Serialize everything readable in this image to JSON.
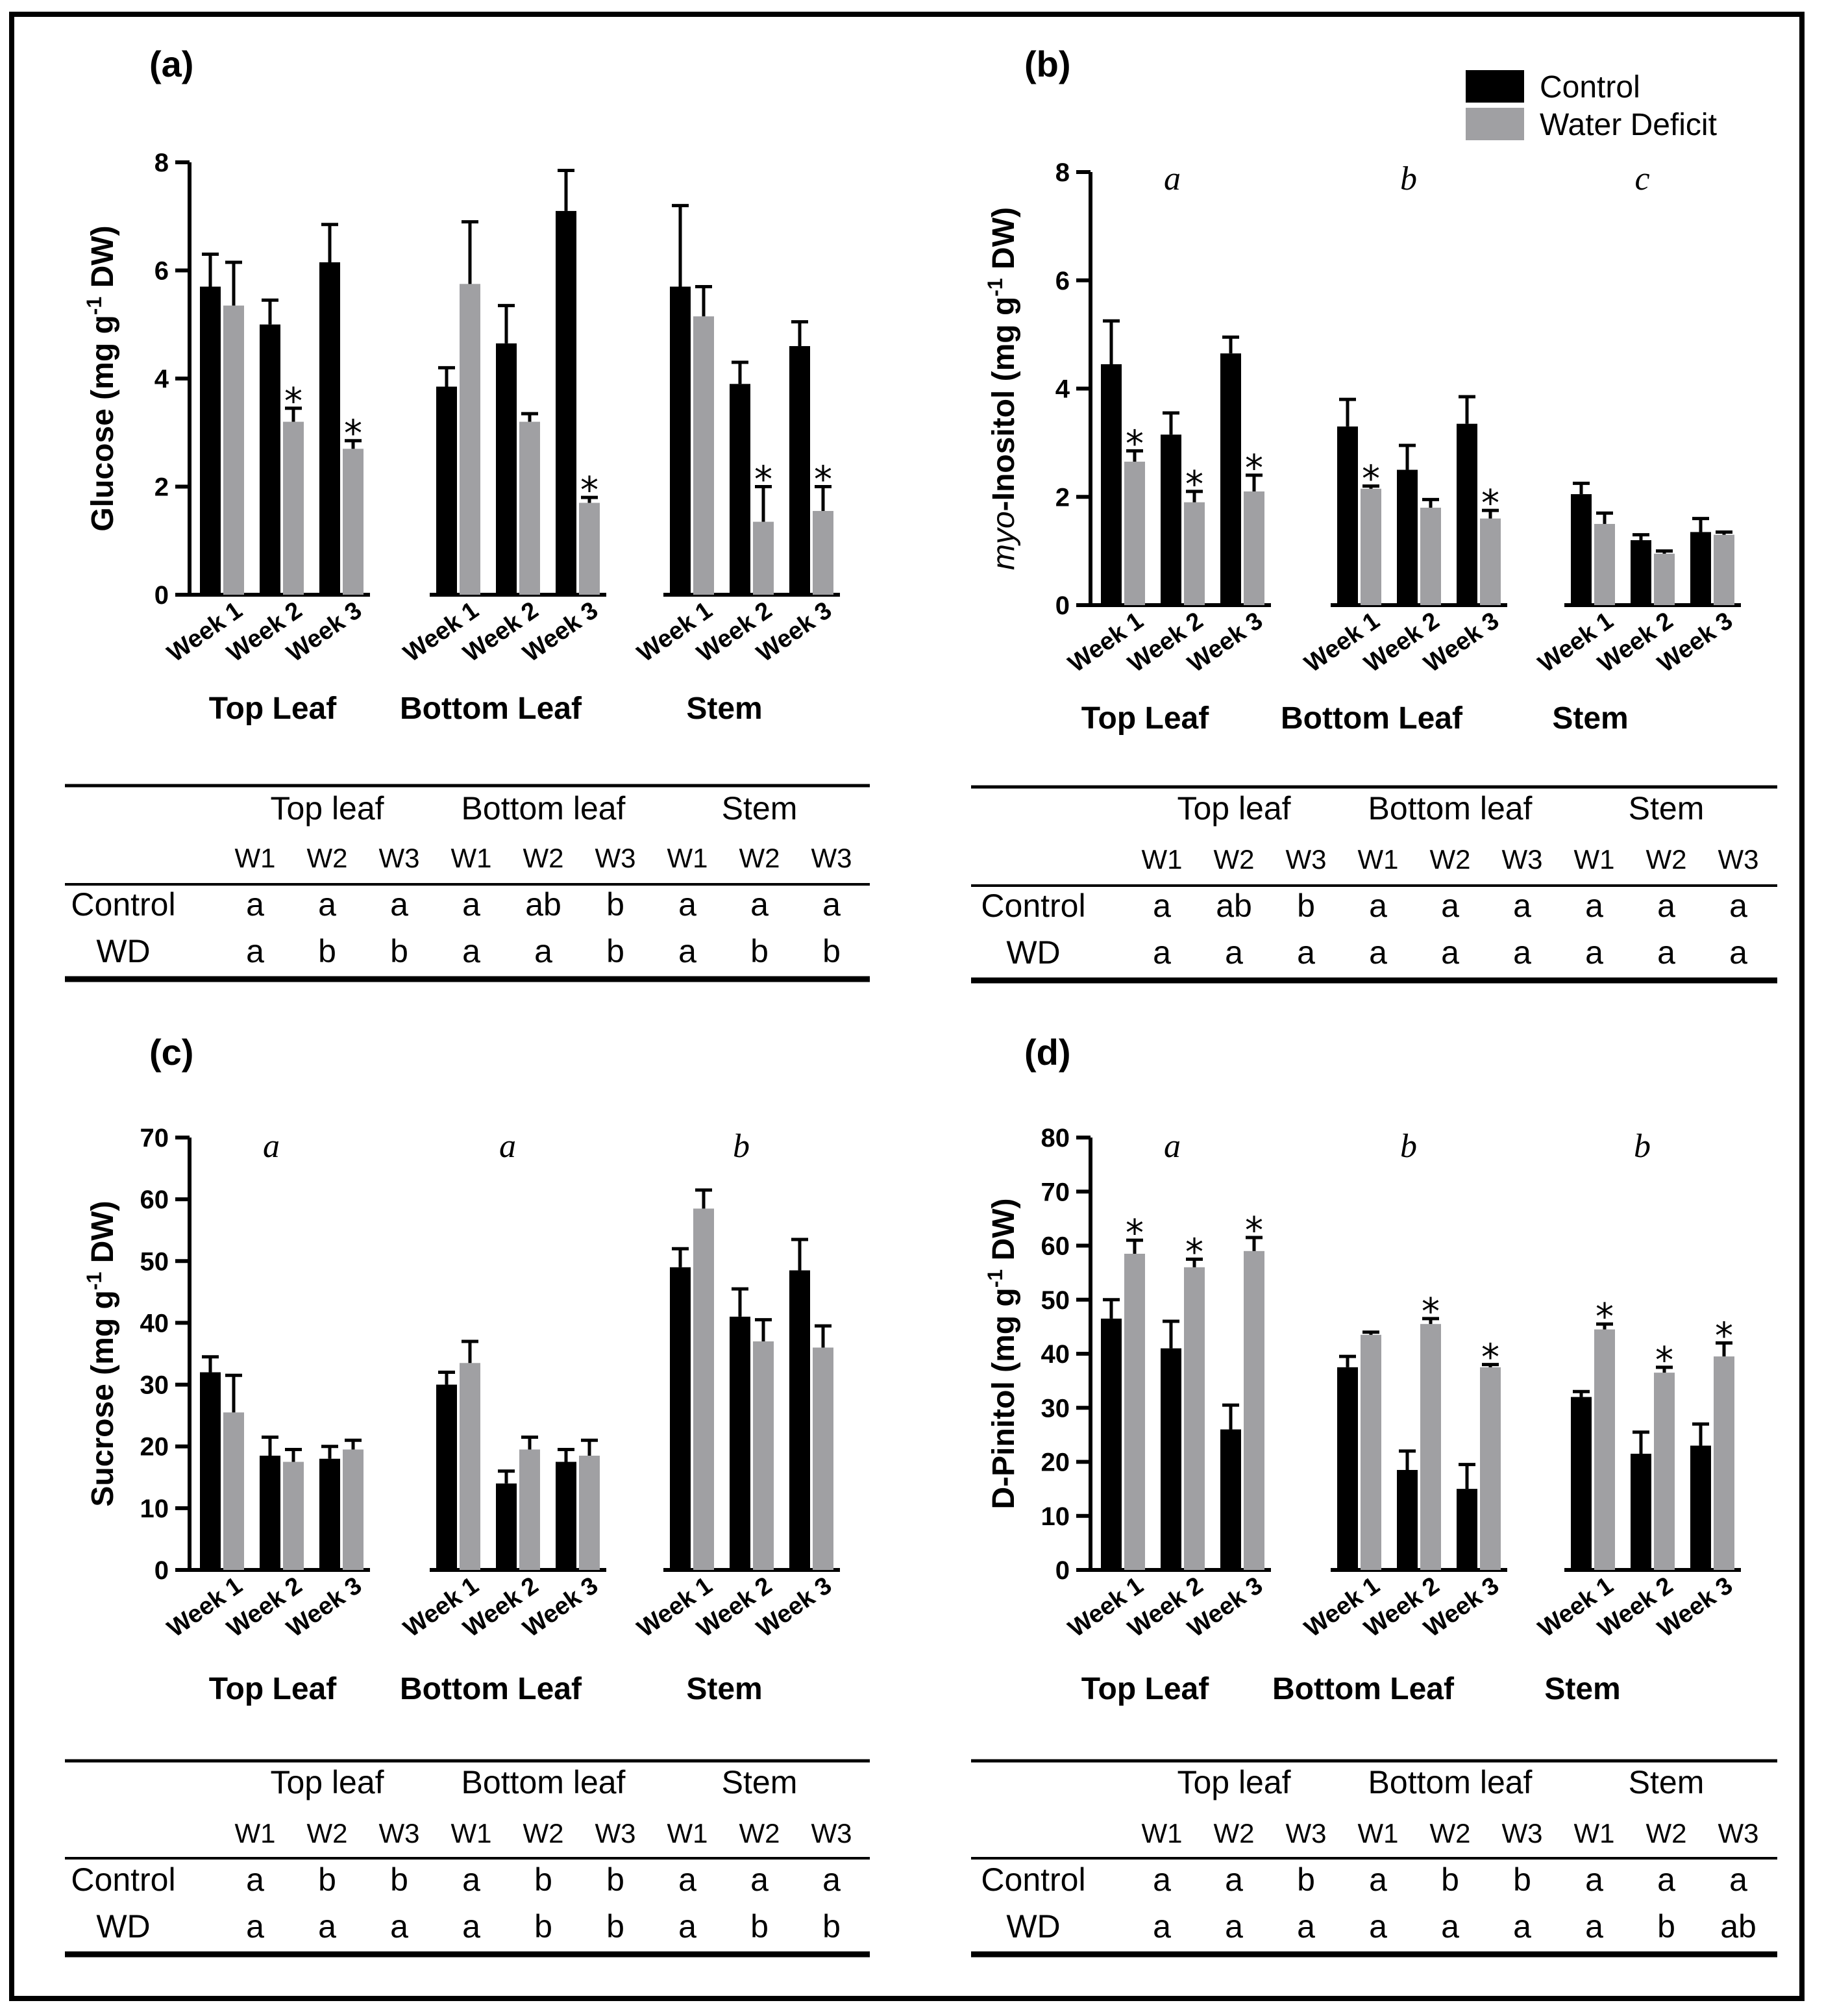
{
  "legend": {
    "items": [
      {
        "label": "Control",
        "color": "#000000"
      },
      {
        "label": "Water Deficit",
        "color": "#a0a0a3"
      }
    ]
  },
  "chart_data": [
    {
      "id": "a",
      "type": "bar",
      "panel_label": "(a)",
      "ylabel_main": "Glucose (mg g",
      "ylabel_sup": "-1",
      "ylabel_end": " DW)",
      "ylabel_italic": "",
      "ylim": [
        0,
        8
      ],
      "yticks": [
        0,
        2,
        4,
        6,
        8
      ],
      "groups": [
        "Top Leaf",
        "Bottom Leaf",
        "Stem"
      ],
      "categories": [
        "Week 1",
        "Week 2",
        "Week 3"
      ],
      "group_letters": [
        "",
        "",
        ""
      ],
      "series": [
        {
          "name": "Control",
          "values": [
            [
              5.7,
              5.0,
              6.15
            ],
            [
              3.85,
              4.65,
              7.1
            ],
            [
              5.7,
              3.9,
              4.6
            ]
          ],
          "errors": [
            [
              0.6,
              0.45,
              0.7
            ],
            [
              0.35,
              0.7,
              0.75
            ],
            [
              1.5,
              0.4,
              0.45
            ]
          ]
        },
        {
          "name": "Water Deficit",
          "values": [
            [
              5.35,
              3.2,
              2.7
            ],
            [
              5.75,
              3.2,
              1.7
            ],
            [
              5.15,
              1.35,
              1.55
            ]
          ],
          "errors": [
            [
              0.8,
              0.25,
              0.15
            ],
            [
              1.15,
              0.15,
              0.1
            ],
            [
              0.55,
              0.65,
              0.45
            ]
          ]
        }
      ],
      "significance": [
        [
          false,
          true,
          true
        ],
        [
          false,
          false,
          true
        ],
        [
          false,
          true,
          true
        ]
      ],
      "table": {
        "groups": [
          "Top leaf",
          "Bottom leaf",
          "Stem"
        ],
        "weeks": [
          "W1",
          "W2",
          "W3",
          "W1",
          "W2",
          "W3",
          "W1",
          "W2",
          "W3"
        ],
        "rows": [
          {
            "label": "Control",
            "cells": [
              "a",
              "a",
              "a",
              "a",
              "ab",
              "b",
              "a",
              "a",
              "a"
            ]
          },
          {
            "label": "WD",
            "cells": [
              "a",
              "b",
              "b",
              "a",
              "a",
              "b",
              "a",
              "b",
              "b"
            ]
          }
        ]
      }
    },
    {
      "id": "b",
      "type": "bar",
      "panel_label": "(b)",
      "ylabel_main": "-Inositol (mg g",
      "ylabel_sup": "-1",
      "ylabel_end": " DW)",
      "ylabel_italic": "myo",
      "ylim": [
        0,
        8
      ],
      "yticks": [
        0,
        2,
        4,
        6,
        8
      ],
      "groups": [
        "Top Leaf",
        "Bottom Leaf",
        "Stem"
      ],
      "categories": [
        "Week 1",
        "Week 2",
        "Week 3"
      ],
      "group_letters": [
        "a",
        "b",
        "c"
      ],
      "series": [
        {
          "name": "Control",
          "values": [
            [
              4.45,
              3.15,
              4.65
            ],
            [
              3.3,
              2.5,
              3.35
            ],
            [
              2.05,
              1.2,
              1.35
            ]
          ],
          "errors": [
            [
              0.8,
              0.4,
              0.3
            ],
            [
              0.5,
              0.45,
              0.5
            ],
            [
              0.2,
              0.1,
              0.25
            ]
          ]
        },
        {
          "name": "Water Deficit",
          "values": [
            [
              2.65,
              1.9,
              2.1
            ],
            [
              2.15,
              1.8,
              1.6
            ],
            [
              1.5,
              0.95,
              1.3
            ]
          ],
          "errors": [
            [
              0.2,
              0.2,
              0.3
            ],
            [
              0.05,
              0.15,
              0.15
            ],
            [
              0.2,
              0.05,
              0.05
            ]
          ]
        }
      ],
      "significance": [
        [
          true,
          true,
          true
        ],
        [
          true,
          false,
          true
        ],
        [
          false,
          false,
          false
        ]
      ],
      "table": {
        "groups": [
          "Top leaf",
          "Bottom leaf",
          "Stem"
        ],
        "weeks": [
          "W1",
          "W2",
          "W3",
          "W1",
          "W2",
          "W3",
          "W1",
          "W2",
          "W3"
        ],
        "rows": [
          {
            "label": "Control",
            "cells": [
              "a",
              "ab",
              "b",
              "a",
              "a",
              "a",
              "a",
              "a",
              "a"
            ]
          },
          {
            "label": "WD",
            "cells": [
              "a",
              "a",
              "a",
              "a",
              "a",
              "a",
              "a",
              "a",
              "a"
            ]
          }
        ]
      }
    },
    {
      "id": "c",
      "type": "bar",
      "panel_label": "(c)",
      "ylabel_main": "Sucrose (mg g",
      "ylabel_sup": "-1",
      "ylabel_end": " DW)",
      "ylabel_italic": "",
      "ylim": [
        0,
        70
      ],
      "yticks": [
        0,
        10,
        20,
        30,
        40,
        50,
        60,
        70
      ],
      "groups": [
        "Top Leaf",
        "Bottom Leaf",
        "Stem"
      ],
      "categories": [
        "Week 1",
        "Week 2",
        "Week 3"
      ],
      "group_letters": [
        "a",
        "a",
        "b"
      ],
      "series": [
        {
          "name": "Control",
          "values": [
            [
              32,
              18.5,
              18
            ],
            [
              30,
              14,
              17.5
            ],
            [
              49,
              41,
              48.5
            ]
          ],
          "errors": [
            [
              2.5,
              3,
              2
            ],
            [
              2,
              2,
              2
            ],
            [
              3,
              4.5,
              5
            ]
          ]
        },
        {
          "name": "Water Deficit",
          "values": [
            [
              25.5,
              17.5,
              19.5
            ],
            [
              33.5,
              19.5,
              18.5
            ],
            [
              58.5,
              37,
              36
            ]
          ],
          "errors": [
            [
              6,
              2,
              1.5
            ],
            [
              3.5,
              2,
              2.5
            ],
            [
              3,
              3.5,
              3.5
            ]
          ]
        }
      ],
      "significance": [
        [
          false,
          false,
          false
        ],
        [
          false,
          false,
          false
        ],
        [
          false,
          false,
          false
        ]
      ],
      "table": {
        "groups": [
          "Top leaf",
          "Bottom leaf",
          "Stem"
        ],
        "weeks": [
          "W1",
          "W2",
          "W3",
          "W1",
          "W2",
          "W3",
          "W1",
          "W2",
          "W3"
        ],
        "rows": [
          {
            "label": "Control",
            "cells": [
              "a",
              "b",
              "b",
              "a",
              "b",
              "b",
              "a",
              "a",
              "a"
            ]
          },
          {
            "label": "WD",
            "cells": [
              "a",
              "a",
              "a",
              "a",
              "b",
              "b",
              "a",
              "b",
              "b"
            ]
          }
        ]
      }
    },
    {
      "id": "d",
      "type": "bar",
      "panel_label": "(d)",
      "ylabel_main": "D-Pinitol (mg g",
      "ylabel_sup": "-1",
      "ylabel_end": " DW)",
      "ylabel_italic": "",
      "ylim": [
        0,
        80
      ],
      "yticks": [
        0,
        10,
        20,
        30,
        40,
        50,
        60,
        70,
        80
      ],
      "groups": [
        "Top Leaf",
        "Bottom Leaf",
        "Stem"
      ],
      "categories": [
        "Week 1",
        "Week 2",
        "Week 3"
      ],
      "group_letters": [
        "a",
        "b",
        "b"
      ],
      "series": [
        {
          "name": "Control",
          "values": [
            [
              46.5,
              41,
              26
            ],
            [
              37.5,
              18.5,
              15
            ],
            [
              32,
              21.5,
              23
            ]
          ],
          "errors": [
            [
              3.5,
              5,
              4.5
            ],
            [
              2,
              3.5,
              4.5
            ],
            [
              1,
              4,
              4
            ]
          ]
        },
        {
          "name": "Water Deficit",
          "values": [
            [
              58.5,
              56,
              59
            ],
            [
              43.5,
              45.5,
              37.5
            ],
            [
              44.5,
              36.5,
              39.5
            ]
          ],
          "errors": [
            [
              2.5,
              1.5,
              2.5
            ],
            [
              0.5,
              1,
              0.5
            ],
            [
              1,
              1,
              2.5
            ]
          ]
        }
      ],
      "significance": [
        [
          true,
          true,
          true
        ],
        [
          false,
          true,
          true
        ],
        [
          true,
          true,
          true
        ]
      ],
      "table": {
        "groups": [
          "Top leaf",
          "Bottom leaf",
          "Stem"
        ],
        "weeks": [
          "W1",
          "W2",
          "W3",
          "W1",
          "W2",
          "W3",
          "W1",
          "W2",
          "W3"
        ],
        "rows": [
          {
            "label": "Control",
            "cells": [
              "a",
              "a",
              "b",
              "a",
              "b",
              "b",
              "a",
              "a",
              "a"
            ]
          },
          {
            "label": "WD",
            "cells": [
              "a",
              "a",
              "a",
              "a",
              "a",
              "a",
              "a",
              "b",
              "ab"
            ]
          }
        ]
      }
    }
  ]
}
